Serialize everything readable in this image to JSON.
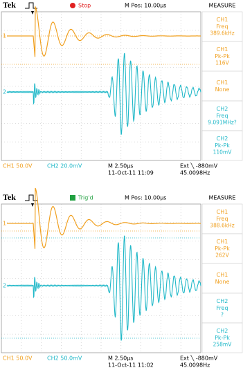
{
  "screens": [
    {
      "header": {
        "brand": "Tek",
        "status": "Stop",
        "mpos": "M Pos: 10.00µs",
        "menu": "MEASURE"
      },
      "markers": [
        "1",
        "2"
      ],
      "measurements": [
        {
          "channel": "CH1",
          "label": "Freq",
          "value": "389.6kHz"
        },
        {
          "channel": "CH1",
          "label": "Pk-Pk",
          "value": "116V"
        },
        {
          "channel": "CH1",
          "label": "None"
        },
        {
          "channel": "CH2",
          "label": "Freq",
          "value": "9.091MHz?"
        },
        {
          "channel": "CH2",
          "label": "Pk-Pk",
          "value": "110mV"
        }
      ],
      "footer": {
        "ch1": "CH1  50.0V",
        "ch2": "CH2  20.0mV",
        "timebase": "M 2.50µs",
        "date_time": "11-Oct-11 11:09",
        "trigger": "Ext ╲ -880mV",
        "trigger_freq": "45.0098Hz"
      }
    },
    {
      "header": {
        "brand": "Tek",
        "status": "Trig'd",
        "mpos": "M Pos: 10.00µs",
        "menu": "MEASURE"
      },
      "markers": [
        "1",
        "2"
      ],
      "measurements": [
        {
          "channel": "CH1",
          "label": "Freq",
          "value": "388.6kHz"
        },
        {
          "channel": "CH1",
          "label": "Pk-Pk",
          "value": "262V"
        },
        {
          "channel": "CH1",
          "label": "None"
        },
        {
          "channel": "CH2",
          "label": "Freq",
          "value": "?"
        },
        {
          "channel": "CH2",
          "label": "Pk-Pk",
          "value": "258mV"
        }
      ],
      "footer": {
        "ch1": "CH1  50.0V",
        "ch2": "CH2  50.0mV",
        "timebase": "M 2.50µs",
        "date_time": "11-Oct-11 11:02",
        "trigger": "Ext ╲ -880mV",
        "trigger_freq": "45.0098Hz"
      }
    }
  ]
}
